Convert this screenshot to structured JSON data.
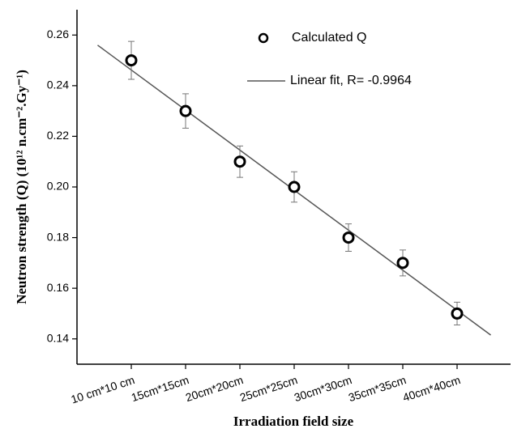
{
  "chart_data": {
    "type": "scatter",
    "xlabel": "Irradiation field size",
    "ylabel": "Neutron strength (Q) (10¹² n.cm⁻².Gy⁻¹)",
    "xlim": [
      5,
      45
    ],
    "xticks": [
      {
        "value": 10,
        "label": "10 cm*10 cm"
      },
      {
        "value": 15,
        "label": "15cm*15cm"
      },
      {
        "value": 20,
        "label": "20cm*20cm"
      },
      {
        "value": 25,
        "label": "25cm*25cm"
      },
      {
        "value": 30,
        "label": "30cm*30cm"
      },
      {
        "value": 35,
        "label": "35cm*35cm"
      },
      {
        "value": 40,
        "label": "40cm*40cm"
      }
    ],
    "ylim": [
      0.13,
      0.27
    ],
    "yticks": [
      0.14,
      0.16,
      0.18,
      {
        "value": 0.2,
        "label": "0.20"
      },
      0.22,
      0.24,
      0.26
    ],
    "series": [
      {
        "name": "Calculated Q",
        "color": "#000000",
        "x": [
          10,
          15,
          20,
          25,
          30,
          35,
          40
        ],
        "values": [
          0.25,
          0.23,
          0.21,
          0.2,
          0.18,
          0.17,
          0.15
        ],
        "errors": [
          0.0075,
          0.0068,
          0.0062,
          0.006,
          0.0054,
          0.0051,
          0.0045
        ]
      },
      {
        "name": "Linear fit, R= -0.9964",
        "color": "#555555",
        "x": [
          6.9,
          43.1
        ],
        "values": [
          0.256,
          0.1415
        ]
      }
    ]
  }
}
